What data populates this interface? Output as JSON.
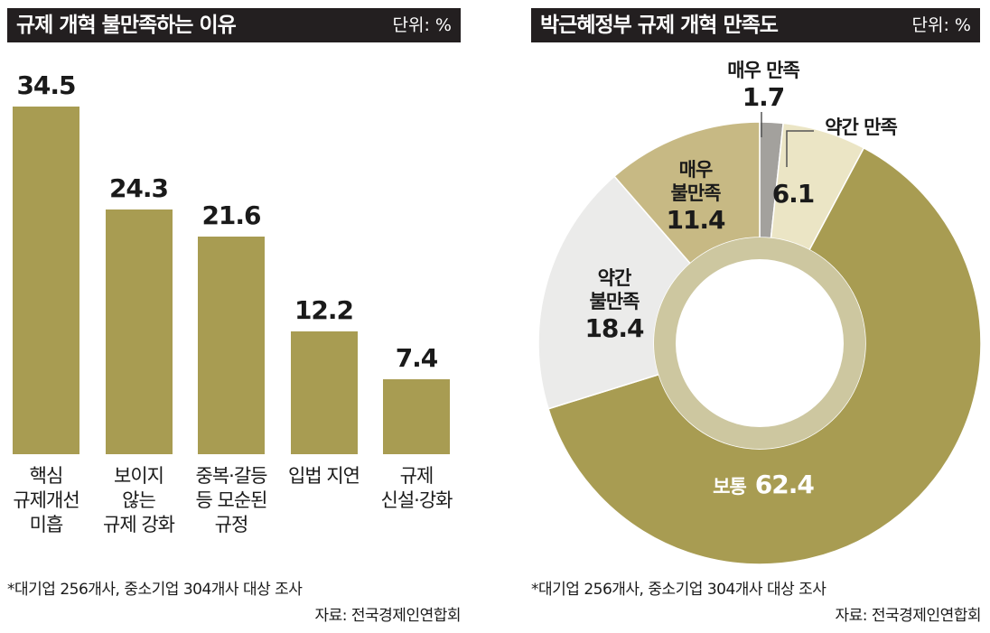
{
  "left": {
    "title": "규제 개혁 불만족하는 이유",
    "unit": "단위: %",
    "note": "*대기업 256개사, 중소기업 304개사 대상 조사",
    "source": "자료: 전국경제인연합회"
  },
  "right": {
    "title": "박근혜정부 규제 개혁 만족도",
    "unit": "단위: %",
    "note": "*대기업 256개사, 중소기업 304개사 대상 조사",
    "source": "자료: 전국경제인연합회"
  },
  "chart_data": [
    {
      "type": "bar",
      "title": "규제 개혁 불만족하는 이유",
      "unit": "단위: %",
      "categories": [
        "핵심\n규제개선\n미흡",
        "보이지\n않는\n규제 강화",
        "중복·갈등\n등 모순된\n규정",
        "입법 지연",
        "규제\n신설·강화"
      ],
      "values": [
        34.5,
        24.3,
        21.6,
        12.2,
        7.4
      ],
      "value_labels": [
        "34.5",
        "24.3",
        "21.6",
        "12.2",
        "7.4"
      ],
      "ylim": [
        0,
        34.5
      ],
      "grid": false,
      "color": "#a89c52"
    },
    {
      "type": "pie",
      "title": "박근혜정부 규제 개혁 만족도",
      "unit": "단위: %",
      "donut": true,
      "slices": [
        {
          "label": "매우 만족",
          "value": 1.7,
          "value_label": "1.7",
          "color": "#a3a19d"
        },
        {
          "label": "약간 만족",
          "value": 6.1,
          "value_label": "6.1",
          "color": "#ebe5c5"
        },
        {
          "label": "보통",
          "value": 62.4,
          "value_label": "62.4",
          "color": "#a89c52"
        },
        {
          "label": "약간\n불만족",
          "value": 18.4,
          "value_label": "18.4",
          "color": "#ebebea"
        },
        {
          "label": "매우\n불만족",
          "value": 11.4,
          "value_label": "11.4",
          "color": "#c7b984"
        }
      ],
      "inner_ring_color": "#cdc7a0"
    }
  ]
}
